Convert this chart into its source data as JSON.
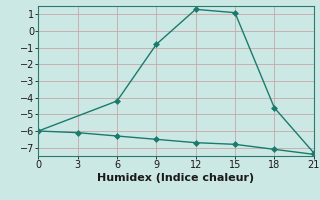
{
  "line1_x": [
    0,
    6,
    9,
    12,
    15,
    18,
    21
  ],
  "line1_y": [
    -6.0,
    -4.2,
    -0.8,
    1.3,
    1.1,
    -4.6,
    -7.3
  ],
  "line2_x": [
    0,
    3,
    6,
    9,
    12,
    15,
    18,
    21
  ],
  "line2_y": [
    -6.0,
    -6.1,
    -6.3,
    -6.5,
    -6.7,
    -6.8,
    -7.1,
    -7.4
  ],
  "line_color": "#1a7a6e",
  "background_color": "#cce8e4",
  "grid_color": "#c8a8a8",
  "xlabel": "Humidex (Indice chaleur)",
  "xlim": [
    0,
    21
  ],
  "ylim": [
    -7.5,
    1.5
  ],
  "xticks": [
    0,
    3,
    6,
    9,
    12,
    15,
    18,
    21
  ],
  "yticks": [
    -7,
    -6,
    -5,
    -4,
    -3,
    -2,
    -1,
    0,
    1
  ],
  "marker": "D",
  "marker_size": 3,
  "line_width": 1.0,
  "font_size": 8,
  "tick_font_size": 7
}
